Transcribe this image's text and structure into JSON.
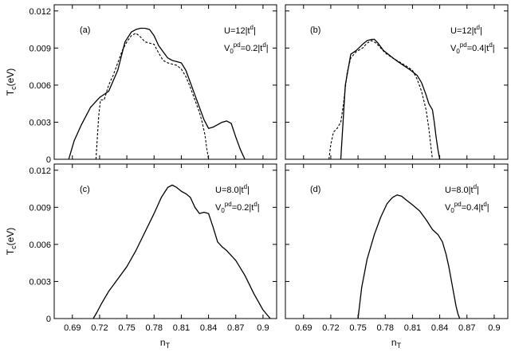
{
  "figure": {
    "ylabel_main": "T",
    "ylabel_sub": "c",
    "ylabel_unit": "(eV)",
    "xlabel_main": "n",
    "xlabel_sub": "T"
  },
  "chart_data": [
    {
      "type": "line",
      "panel": "(a)",
      "annotation": [
        {
          "parts": [
            {
              "t": "U=12|t"
            },
            {
              "t": "d",
              "sup": true
            },
            {
              "t": "|"
            }
          ]
        },
        {
          "parts": [
            {
              "t": "V"
            },
            {
              "t": "0",
              "sub": true
            },
            {
              "t": "pd",
              "sup": true
            },
            {
              "t": "=0.2|t"
            },
            {
              "t": "d",
              "sup": true
            },
            {
              "t": "|"
            }
          ]
        }
      ],
      "xlim": [
        0.67,
        0.915
      ],
      "ylim": [
        0,
        0.0125
      ],
      "xticks": [
        "0.69",
        "0.72",
        "0.75",
        "0.78",
        "0.81",
        "0.84",
        "0.87",
        "0.9"
      ],
      "yticks": [
        "0",
        "0.003",
        "0.006",
        "0.009",
        "0.012"
      ],
      "series": [
        {
          "style": "solid",
          "x": [
            0.686,
            0.692,
            0.7,
            0.71,
            0.72,
            0.73,
            0.74,
            0.748,
            0.755,
            0.76,
            0.765,
            0.77,
            0.775,
            0.78,
            0.785,
            0.79,
            0.795,
            0.8,
            0.805,
            0.81,
            0.815,
            0.82,
            0.825,
            0.83,
            0.835,
            0.84,
            0.845,
            0.85,
            0.855,
            0.86,
            0.865,
            0.87,
            0.875,
            0.88
          ],
          "y": [
            0.0,
            0.0015,
            0.0028,
            0.0042,
            0.005,
            0.0055,
            0.0072,
            0.0095,
            0.0103,
            0.0105,
            0.0106,
            0.0106,
            0.0105,
            0.01,
            0.0092,
            0.0087,
            0.0082,
            0.008,
            0.0079,
            0.0078,
            0.0072,
            0.0062,
            0.0052,
            0.0042,
            0.0032,
            0.0025,
            0.0026,
            0.0028,
            0.003,
            0.0031,
            0.0029,
            0.0018,
            0.0008,
            0.0
          ]
        },
        {
          "style": "dashed",
          "x": [
            0.716,
            0.719,
            0.721,
            0.725,
            0.73,
            0.735,
            0.74,
            0.745,
            0.75,
            0.755,
            0.76,
            0.765,
            0.77,
            0.775,
            0.78,
            0.785,
            0.79,
            0.795,
            0.8,
            0.805,
            0.81,
            0.815,
            0.82,
            0.825,
            0.83,
            0.833,
            0.836,
            0.838,
            0.84
          ],
          "y": [
            0.0,
            0.0035,
            0.0048,
            0.0048,
            0.006,
            0.0068,
            0.0078,
            0.0088,
            0.0095,
            0.01,
            0.0102,
            0.0099,
            0.0095,
            0.0094,
            0.0093,
            0.0086,
            0.008,
            0.0078,
            0.0077,
            0.0076,
            0.0073,
            0.0067,
            0.0058,
            0.0048,
            0.0038,
            0.003,
            0.002,
            0.0009,
            0.0
          ]
        }
      ]
    },
    {
      "type": "line",
      "panel": "(b)",
      "annotation": [
        {
          "parts": [
            {
              "t": "U=12|t"
            },
            {
              "t": "d",
              "sup": true
            },
            {
              "t": "|"
            }
          ]
        },
        {
          "parts": [
            {
              "t": "V"
            },
            {
              "t": "0",
              "sub": true
            },
            {
              "t": "pd",
              "sup": true
            },
            {
              "t": "=0.4|t"
            },
            {
              "t": "d",
              "sup": true
            },
            {
              "t": "|"
            }
          ]
        }
      ],
      "xlim": [
        0.67,
        0.915
      ],
      "ylim": [
        0,
        0.0125
      ],
      "xticks": [
        "0.69",
        "0.72",
        "0.75",
        "0.78",
        "0.81",
        "0.84",
        "0.87",
        "0.9"
      ],
      "yticks": [
        "0",
        "0.003",
        "0.006",
        "0.009",
        "0.012"
      ],
      "series": [
        {
          "style": "solid",
          "x": [
            0.731,
            0.736,
            0.742,
            0.748,
            0.755,
            0.76,
            0.765,
            0.768,
            0.772,
            0.778,
            0.785,
            0.792,
            0.8,
            0.808,
            0.815,
            0.82,
            0.825,
            0.828,
            0.832,
            0.834,
            0.836,
            0.838,
            0.84
          ],
          "y": [
            0.0,
            0.006,
            0.0085,
            0.0088,
            0.0093,
            0.0096,
            0.0097,
            0.0097,
            0.0094,
            0.0088,
            0.0084,
            0.008,
            0.0076,
            0.0072,
            0.0068,
            0.0062,
            0.0052,
            0.0045,
            0.004,
            0.003,
            0.0018,
            0.0008,
            0.0
          ]
        },
        {
          "style": "dashed",
          "x": [
            0.718,
            0.72,
            0.723,
            0.727,
            0.731,
            0.734,
            0.738,
            0.742,
            0.748,
            0.755,
            0.76,
            0.765,
            0.77,
            0.775,
            0.78,
            0.788,
            0.795,
            0.802,
            0.81,
            0.815,
            0.82,
            0.825,
            0.828,
            0.83,
            0.832
          ],
          "y": [
            0.0,
            0.0012,
            0.0022,
            0.0025,
            0.003,
            0.0045,
            0.007,
            0.0082,
            0.0087,
            0.009,
            0.0094,
            0.0096,
            0.0094,
            0.009,
            0.0086,
            0.0082,
            0.0079,
            0.0076,
            0.0072,
            0.0065,
            0.0055,
            0.004,
            0.0025,
            0.0012,
            0.0
          ]
        }
      ]
    },
    {
      "type": "line",
      "panel": "(c)",
      "annotation": [
        {
          "parts": [
            {
              "t": "U=8.0|t"
            },
            {
              "t": "d",
              "sup": true
            },
            {
              "t": "|"
            }
          ]
        },
        {
          "parts": [
            {
              "t": "V"
            },
            {
              "t": "0",
              "sub": true
            },
            {
              "t": "pd",
              "sup": true
            },
            {
              "t": "=0.2|t"
            },
            {
              "t": "d",
              "sup": true
            },
            {
              "t": "|"
            }
          ]
        }
      ],
      "xlim": [
        0.67,
        0.915
      ],
      "ylim": [
        0,
        0.0125
      ],
      "xticks": [
        "0.69",
        "0.72",
        "0.75",
        "0.78",
        "0.81",
        "0.84",
        "0.87",
        "0.9"
      ],
      "yticks": [
        "0",
        "0.003",
        "0.006",
        "0.009",
        "0.012"
      ],
      "series": [
        {
          "style": "solid",
          "x": [
            0.713,
            0.717,
            0.722,
            0.73,
            0.74,
            0.75,
            0.76,
            0.77,
            0.78,
            0.788,
            0.795,
            0.8,
            0.805,
            0.81,
            0.815,
            0.82,
            0.825,
            0.83,
            0.835,
            0.84,
            0.845,
            0.85,
            0.855,
            0.86,
            0.87,
            0.88,
            0.89,
            0.9,
            0.908
          ],
          "y": [
            0.0,
            0.0005,
            0.0012,
            0.0022,
            0.0032,
            0.0042,
            0.0055,
            0.007,
            0.0085,
            0.0098,
            0.0106,
            0.0108,
            0.0106,
            0.0103,
            0.0101,
            0.0098,
            0.009,
            0.0085,
            0.0086,
            0.0085,
            0.0074,
            0.0062,
            0.0058,
            0.0055,
            0.0047,
            0.0035,
            0.002,
            0.0007,
            0.0
          ]
        }
      ]
    },
    {
      "type": "line",
      "panel": "(d)",
      "annotation": [
        {
          "parts": [
            {
              "t": "U=8.0|t"
            },
            {
              "t": "d",
              "sup": true
            },
            {
              "t": "|"
            }
          ]
        },
        {
          "parts": [
            {
              "t": "V"
            },
            {
              "t": "0",
              "sub": true
            },
            {
              "t": "pd",
              "sup": true
            },
            {
              "t": "=0.4|t"
            },
            {
              "t": "d",
              "sup": true
            },
            {
              "t": "|"
            }
          ]
        }
      ],
      "xlim": [
        0.67,
        0.915
      ],
      "ylim": [
        0,
        0.0125
      ],
      "xticks": [
        "0.69",
        "0.72",
        "0.75",
        "0.78",
        "0.81",
        "0.84",
        "0.87",
        "0.9"
      ],
      "yticks": [
        "0",
        "0.003",
        "0.006",
        "0.009",
        "0.012"
      ],
      "series": [
        {
          "style": "solid",
          "x": [
            0.75,
            0.754,
            0.76,
            0.768,
            0.775,
            0.782,
            0.788,
            0.793,
            0.798,
            0.803,
            0.81,
            0.818,
            0.825,
            0.832,
            0.838,
            0.843,
            0.847,
            0.85,
            0.853,
            0.856,
            0.858,
            0.86,
            0.862
          ],
          "y": [
            0.0,
            0.0025,
            0.0048,
            0.0068,
            0.0082,
            0.0093,
            0.0098,
            0.01,
            0.0099,
            0.0096,
            0.0092,
            0.0087,
            0.008,
            0.0072,
            0.0068,
            0.0062,
            0.0052,
            0.0042,
            0.003,
            0.0018,
            0.001,
            0.0004,
            0.0
          ]
        }
      ]
    }
  ]
}
